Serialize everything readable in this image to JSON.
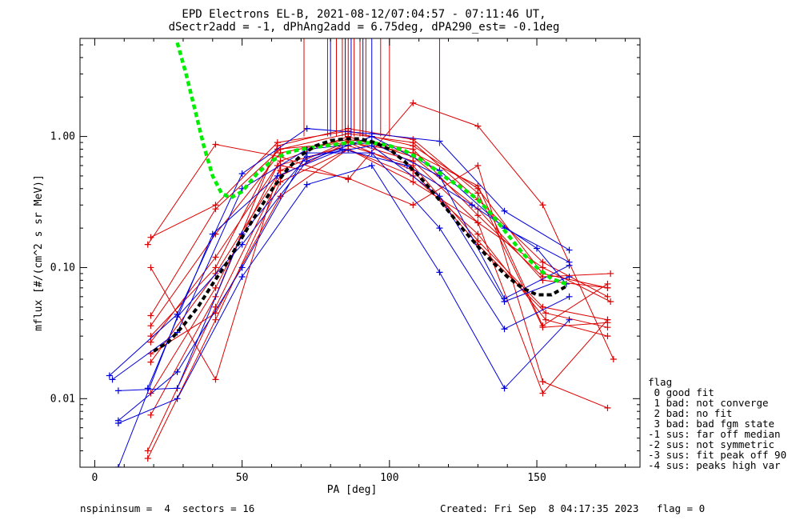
{
  "chart_data": {
    "type": "line",
    "title_lines": [
      "EPD Electrons EL-B, 2021-08-12/07:04:57 - 07:11:46 UT,",
      "dSectr2add = -1, dPhAng2add = 6.75deg, dPA290_est=  -0.1deg"
    ],
    "xlabel": "PA [deg]",
    "ylabel": "mflux [#/(cm^2 s sr MeV)]",
    "xlim": [
      -5,
      185
    ],
    "ylim": [
      0.003,
      5.6
    ],
    "yscale": "log",
    "x_ticks": [
      0,
      50,
      100,
      150
    ],
    "x_tick_labels": [
      "0",
      "50",
      "100",
      "150"
    ],
    "y_ticks": [
      0.01,
      0.1,
      1.0
    ],
    "y_tick_labels": [
      "0.01",
      "0.10",
      "1.00"
    ],
    "grid": false,
    "colors": {
      "red": "#dd0000",
      "blue": "#0000dd",
      "green": "#00ee00",
      "black": "#000000"
    },
    "vertical_lines": {
      "red": [
        71,
        79,
        82,
        84,
        86,
        88,
        90,
        92,
        97,
        100,
        117
      ],
      "blue": [
        80,
        85,
        87,
        91,
        94
      ],
      "top_y": 5.6,
      "bottom_y": 1.0
    },
    "series": [
      {
        "color": "red",
        "points": [
          [
            19,
            0.17
          ],
          [
            41,
            0.3
          ],
          [
            62,
            0.9
          ],
          [
            86,
            1.1
          ],
          [
            108,
            0.85
          ],
          [
            130,
            0.4
          ],
          [
            152,
            0.09
          ],
          [
            174,
            0.07
          ]
        ]
      },
      {
        "color": "red",
        "points": [
          [
            19,
            0.043
          ],
          [
            41,
            0.28
          ],
          [
            63,
            0.8
          ],
          [
            86,
            1.05
          ],
          [
            108,
            0.9
          ],
          [
            130,
            0.33
          ],
          [
            152,
            0.11
          ],
          [
            174,
            0.06
          ]
        ]
      },
      {
        "color": "red",
        "points": [
          [
            19,
            0.036
          ],
          [
            41,
            0.18
          ],
          [
            63,
            0.75
          ],
          [
            86,
            0.95
          ],
          [
            108,
            0.8
          ],
          [
            130,
            0.25
          ],
          [
            152,
            0.085
          ],
          [
            175,
            0.09
          ]
        ]
      },
      {
        "color": "red",
        "points": [
          [
            19,
            0.027
          ],
          [
            41,
            0.12
          ],
          [
            63,
            0.65
          ],
          [
            86,
            1.0
          ],
          [
            108,
            0.7
          ],
          [
            130,
            0.28
          ],
          [
            152,
            0.08
          ],
          [
            174,
            0.07
          ]
        ]
      },
      {
        "color": "red",
        "points": [
          [
            19,
            0.019
          ],
          [
            41,
            0.09
          ],
          [
            63,
            0.55
          ],
          [
            86,
            0.92
          ],
          [
            108,
            0.65
          ],
          [
            130,
            0.22
          ],
          [
            152,
            0.1
          ],
          [
            175,
            0.055
          ]
        ]
      },
      {
        "color": "red",
        "points": [
          [
            19,
            0.011
          ],
          [
            41,
            0.07
          ],
          [
            62,
            0.6
          ],
          [
            86,
            0.85
          ],
          [
            108,
            0.6
          ],
          [
            130,
            0.16
          ],
          [
            152,
            0.05
          ],
          [
            174,
            0.04
          ]
        ]
      },
      {
        "color": "red",
        "points": [
          [
            18,
            0.004
          ],
          [
            41,
            0.05
          ],
          [
            63,
            0.5
          ],
          [
            86,
            0.9
          ],
          [
            108,
            0.55
          ],
          [
            130,
            0.15
          ],
          [
            153,
            0.045
          ],
          [
            174,
            0.035
          ]
        ]
      },
      {
        "color": "red",
        "points": [
          [
            18,
            0.0035
          ],
          [
            41,
            0.04
          ],
          [
            63,
            0.45
          ],
          [
            86,
            0.8
          ],
          [
            108,
            0.5
          ],
          [
            130,
            0.18
          ],
          [
            153,
            0.04
          ],
          [
            174,
            0.03
          ]
        ]
      },
      {
        "color": "red",
        "points": [
          [
            19,
            0.0075
          ],
          [
            41,
            0.06
          ],
          [
            62,
            0.85
          ],
          [
            86,
            1.15
          ],
          [
            108,
            0.95
          ],
          [
            130,
            0.37
          ],
          [
            152,
            0.035
          ],
          [
            174,
            0.038
          ]
        ]
      },
      {
        "color": "red",
        "points": [
          [
            18,
            0.15
          ],
          [
            41,
            0.87
          ],
          [
            63,
            0.7
          ],
          [
            86,
            0.47
          ],
          [
            108,
            1.8
          ],
          [
            130,
            1.2
          ],
          [
            152,
            0.3
          ],
          [
            176,
            0.02
          ]
        ]
      },
      {
        "color": "red",
        "points": [
          [
            19,
            0.1
          ],
          [
            41,
            0.014
          ],
          [
            63,
            0.6
          ],
          [
            86,
            0.48
          ],
          [
            108,
            0.3
          ],
          [
            130,
            0.6
          ],
          [
            152,
            0.0135
          ],
          [
            174,
            0.0085
          ]
        ]
      },
      {
        "color": "red",
        "points": [
          [
            19,
            0.022
          ],
          [
            41,
            0.045
          ],
          [
            63,
            0.35
          ],
          [
            86,
            0.8
          ],
          [
            108,
            0.45
          ],
          [
            130,
            0.22
          ],
          [
            152,
            0.011
          ],
          [
            174,
            0.04
          ]
        ]
      },
      {
        "color": "red",
        "points": [
          [
            19,
            0.03
          ],
          [
            41,
            0.1
          ],
          [
            62,
            0.8
          ],
          [
            86,
            0.9
          ],
          [
            108,
            0.75
          ],
          [
            130,
            0.42
          ],
          [
            152,
            0.036
          ],
          [
            174,
            0.075
          ]
        ]
      },
      {
        "color": "blue",
        "points": [
          [
            5,
            0.015
          ],
          [
            28,
            0.044
          ],
          [
            50,
            0.52
          ],
          [
            72,
            1.15
          ],
          [
            94,
            1.05
          ],
          [
            117,
            0.92
          ],
          [
            139,
            0.27
          ],
          [
            161,
            0.136
          ]
        ]
      },
      {
        "color": "blue",
        "points": [
          [
            6,
            0.014
          ],
          [
            28,
            0.032
          ],
          [
            50,
            0.4
          ],
          [
            72,
            0.8
          ],
          [
            94,
            0.9
          ],
          [
            117,
            0.5
          ],
          [
            139,
            0.058
          ],
          [
            161,
            0.104
          ]
        ]
      },
      {
        "color": "blue",
        "points": [
          [
            8,
            0.0115
          ],
          [
            28,
            0.012
          ],
          [
            50,
            0.18
          ],
          [
            72,
            0.7
          ],
          [
            94,
            0.85
          ],
          [
            117,
            0.35
          ],
          [
            139,
            0.055
          ],
          [
            161,
            0.085
          ]
        ]
      },
      {
        "color": "blue",
        "points": [
          [
            8,
            0.0068
          ],
          [
            28,
            0.016
          ],
          [
            50,
            0.1
          ],
          [
            72,
            0.75
          ],
          [
            94,
            0.75
          ],
          [
            117,
            0.2
          ],
          [
            139,
            0.034
          ],
          [
            161,
            0.06
          ]
        ]
      },
      {
        "color": "blue",
        "points": [
          [
            8,
            0.0065
          ],
          [
            28,
            0.01
          ],
          [
            50,
            0.085
          ],
          [
            72,
            0.43
          ],
          [
            94,
            0.6
          ],
          [
            117,
            0.092
          ],
          [
            139,
            0.012
          ],
          [
            161,
            0.04
          ]
        ]
      },
      {
        "color": "blue",
        "points": [
          [
            8,
            0.003
          ],
          [
            28,
            0.042
          ],
          [
            50,
            0.15
          ],
          [
            72,
            0.65
          ],
          [
            94,
            1.0
          ],
          [
            117,
            0.55
          ],
          [
            139,
            0.2
          ],
          [
            161,
            0.11
          ]
        ]
      },
      {
        "color": "blue",
        "points": [
          [
            18,
            0.012
          ],
          [
            40,
            0.18
          ],
          [
            62,
            0.5
          ],
          [
            84,
            0.8
          ],
          [
            106,
            0.6
          ],
          [
            128,
            0.3
          ],
          [
            150,
            0.14
          ],
          [
            160,
            0.075
          ]
        ]
      },
      {
        "color": "green",
        "dashed": true,
        "width": 4.5,
        "points": [
          [
            28,
            5.2
          ],
          [
            31,
            3.0
          ],
          [
            34,
            1.6
          ],
          [
            37,
            0.85
          ],
          [
            40,
            0.5
          ],
          [
            43,
            0.37
          ],
          [
            46,
            0.34
          ],
          [
            50,
            0.38
          ],
          [
            55,
            0.52
          ],
          [
            60,
            0.65
          ],
          [
            65,
            0.75
          ],
          [
            70,
            0.8
          ],
          [
            75,
            0.83
          ],
          [
            80,
            0.86
          ],
          [
            85,
            0.89
          ],
          [
            90,
            0.9
          ],
          [
            95,
            0.89
          ],
          [
            100,
            0.85
          ],
          [
            105,
            0.78
          ],
          [
            110,
            0.68
          ],
          [
            115,
            0.57
          ],
          [
            120,
            0.47
          ],
          [
            125,
            0.4
          ],
          [
            130,
            0.33
          ],
          [
            135,
            0.25
          ],
          [
            140,
            0.18
          ],
          [
            145,
            0.13
          ],
          [
            150,
            0.1
          ],
          [
            155,
            0.082
          ],
          [
            160,
            0.075
          ]
        ]
      },
      {
        "color": "black",
        "dashed": true,
        "width": 4,
        "points": [
          [
            20,
            0.023
          ],
          [
            25,
            0.027
          ],
          [
            30,
            0.036
          ],
          [
            35,
            0.05
          ],
          [
            40,
            0.075
          ],
          [
            45,
            0.11
          ],
          [
            50,
            0.17
          ],
          [
            55,
            0.26
          ],
          [
            60,
            0.39
          ],
          [
            65,
            0.55
          ],
          [
            70,
            0.72
          ],
          [
            75,
            0.85
          ],
          [
            80,
            0.93
          ],
          [
            85,
            0.96
          ],
          [
            90,
            0.96
          ],
          [
            95,
            0.9
          ],
          [
            100,
            0.8
          ],
          [
            105,
            0.65
          ],
          [
            110,
            0.5
          ],
          [
            115,
            0.37
          ],
          [
            120,
            0.27
          ],
          [
            125,
            0.195
          ],
          [
            130,
            0.145
          ],
          [
            135,
            0.11
          ],
          [
            140,
            0.085
          ],
          [
            145,
            0.07
          ],
          [
            150,
            0.062
          ],
          [
            155,
            0.062
          ],
          [
            160,
            0.072
          ]
        ]
      }
    ]
  },
  "legend": {
    "title": "flag",
    "items": [
      " 0 good fit",
      " 1 bad: not converge",
      " 2 bad: no fit",
      " 3 bad: bad fgm state",
      "-1 sus: far off median",
      "-2 sus: not symmetric",
      "-3 sus: fit peak off 90",
      "-4 sus: peaks high var"
    ]
  },
  "footer": {
    "left": "nspininsum =  4  sectors = 16",
    "right": "Created: Fri Sep  8 04:17:35 2023   flag = 0"
  }
}
